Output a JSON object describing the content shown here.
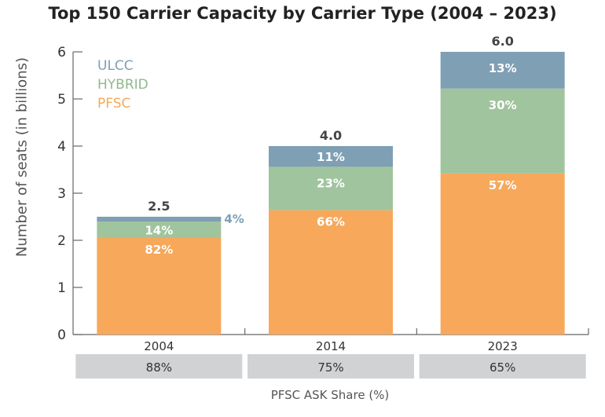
{
  "chart_data": {
    "type": "bar",
    "stacked": true,
    "title": "Top 150 Carrier Capacity by Carrier Type (2004 – 2023)",
    "ylabel": "Number of seats (in billions)",
    "ylim": [
      0,
      6
    ],
    "yticks": [
      "0",
      "1",
      "2",
      "3",
      "4",
      "5",
      "6"
    ],
    "categories": [
      "2004",
      "2014",
      "2023"
    ],
    "totals": [
      2.5,
      4.0,
      6.0
    ],
    "total_labels": [
      "2.5",
      "4.0",
      "6.0"
    ],
    "series": [
      {
        "name": "PFSC",
        "color": "#f7a85a",
        "values": [
          2.05,
          2.64,
          3.42
        ],
        "labels": [
          "82%",
          "66%",
          "57%"
        ]
      },
      {
        "name": "HYBRID",
        "color": "#a0c49d",
        "values": [
          0.35,
          0.92,
          1.8
        ],
        "labels": [
          "14%",
          "23%",
          "30%"
        ]
      },
      {
        "name": "ULCC",
        "color": "#7f9fb4",
        "values": [
          0.1,
          0.44,
          0.78
        ],
        "labels": [
          "4%",
          "11%",
          "13%"
        ]
      }
    ],
    "legend": {
      "position": "top-left",
      "entries": [
        {
          "name": "ULCC",
          "color": "#7f9fb4"
        },
        {
          "name": "HYBRID",
          "color": "#8fba8c"
        },
        {
          "name": "PFSC",
          "color": "#f7a85a"
        }
      ]
    },
    "pfsc_ask_share": {
      "label": "PFSC ASK Share (%)",
      "values": [
        "88%",
        "75%",
        "65%"
      ]
    },
    "grid": false
  }
}
